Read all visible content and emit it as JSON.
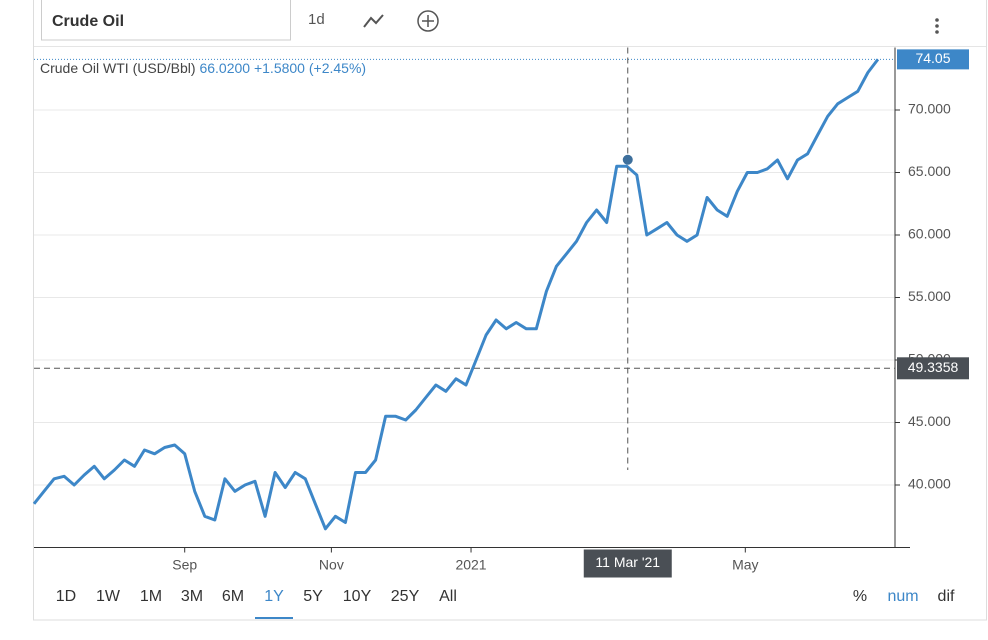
{
  "toolbar": {
    "search": "Crude Oil",
    "interval": "1d"
  },
  "chart_data": {
    "type": "line",
    "legend": {
      "name": "Crude Oil WTI (USD/Bbl)",
      "value": "66.0200",
      "change": "+1.5800",
      "change_pct": "(+2.45%)"
    },
    "series": [
      {
        "name": "Crude Oil WTI (USD/Bbl)",
        "color": "#3d87c8",
        "values": [
          38.5,
          39.5,
          40.5,
          40.7,
          40.0,
          40.8,
          41.5,
          40.5,
          41.2,
          42.0,
          41.5,
          42.8,
          42.5,
          43.0,
          43.2,
          42.5,
          39.5,
          37.5,
          37.2,
          40.5,
          39.5,
          40.0,
          40.3,
          37.5,
          41.0,
          39.8,
          41.0,
          40.5,
          38.5,
          36.5,
          37.5,
          37.0,
          41.0,
          41.0,
          42.0,
          45.5,
          45.5,
          45.2,
          46.0,
          47.0,
          48.0,
          47.5,
          48.5,
          48.0,
          50.0,
          52.0,
          53.2,
          52.5,
          53.0,
          52.5,
          52.5,
          55.5,
          57.5,
          58.5,
          59.5,
          61.0,
          62.0,
          61.0,
          65.5,
          65.5,
          64.8,
          60.0,
          60.5,
          61.0,
          60.0,
          59.5,
          60.0,
          63.0,
          62.0,
          61.5,
          63.5,
          65.0,
          65.0,
          65.3,
          66.0,
          64.5,
          66.0,
          66.5,
          68.0,
          69.5,
          70.5,
          71.0,
          71.5,
          73.0,
          74.05
        ]
      }
    ],
    "xlim": [
      0,
      85.7
    ],
    "xticks": [
      {
        "value": 15.0,
        "label": "Sep"
      },
      {
        "value": 29.6,
        "label": "Nov"
      },
      {
        "value": 43.5,
        "label": "2021"
      },
      {
        "value": 70.8,
        "label": "May"
      }
    ],
    "ylim": [
      35,
      75
    ],
    "yticks": [
      {
        "value": 40,
        "label": "40.000"
      },
      {
        "value": 45,
        "label": "45.000"
      },
      {
        "value": 50,
        "label": "50.000"
      },
      {
        "value": 55,
        "label": "55.000"
      },
      {
        "value": 60,
        "label": "60.000"
      },
      {
        "value": 65,
        "label": "65.000"
      },
      {
        "value": 70,
        "label": "70.000"
      }
    ],
    "grid": true,
    "crosshair": {
      "x": 59.1,
      "x_label": "11 Mar '21",
      "point": 66.02,
      "y": 49.3358
    }
  },
  "ranges": [
    "1D",
    "1W",
    "1M",
    "3M",
    "6M",
    "1Y",
    "5Y",
    "10Y",
    "25Y",
    "All"
  ],
  "active_range": "1Y",
  "modes": [
    "%",
    "num",
    "dif"
  ]
}
